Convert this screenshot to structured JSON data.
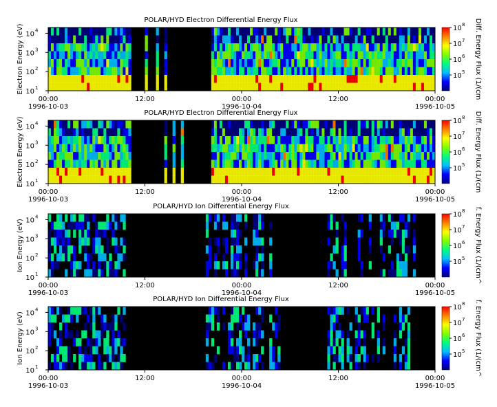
{
  "chart_data": [
    {
      "type": "heatmap",
      "title": "POLAR/HYD  Electron Differential Energy Flux",
      "ylabel": "Electron Energy (eV)",
      "colorbar_label": "Diff. Energy Flux (1/(cm",
      "colorbar_ticks": [
        "10",
        "10",
        "10",
        "10"
      ],
      "colorbar_exps": [
        "5",
        "6",
        "7",
        "8"
      ],
      "yticks": [
        "10",
        "10",
        "10",
        "10"
      ],
      "yexps": [
        "1",
        "2",
        "3",
        "4"
      ],
      "xticks": [
        "00:00",
        "12:00",
        "00:00",
        "12:00",
        "00:00"
      ],
      "xdates": [
        "1996-10-03",
        "",
        "1996-10-04",
        "",
        "1996-10-05"
      ],
      "ylim": [
        10,
        20000
      ],
      "yscale": "log",
      "xlim": [
        "1996-10-03 00:00",
        "1996-10-05 00:00"
      ],
      "zscale": "log",
      "zlim": [
        10000,
        100000000
      ],
      "ion": false
    },
    {
      "type": "heatmap",
      "title": "POLAR/HYD  Electron Differential Energy Flux",
      "ylabel": "Electron Energy (eV)",
      "colorbar_label": "Diff. Energy Flux (1/(cm",
      "colorbar_ticks": [
        "10",
        "10",
        "10",
        "10"
      ],
      "colorbar_exps": [
        "5",
        "6",
        "7",
        "8"
      ],
      "yticks": [
        "10",
        "10",
        "10",
        "10"
      ],
      "yexps": [
        "1",
        "2",
        "3",
        "4"
      ],
      "xticks": [
        "00:00",
        "12:00",
        "00:00",
        "12:00",
        "00:00"
      ],
      "xdates": [
        "1996-10-03",
        "",
        "1996-10-04",
        "",
        "1996-10-05"
      ],
      "ylim": [
        10,
        20000
      ],
      "yscale": "log",
      "xlim": [
        "1996-10-03 00:00",
        "1996-10-05 00:00"
      ],
      "zscale": "log",
      "zlim": [
        10000,
        100000000
      ],
      "ion": false
    },
    {
      "type": "heatmap",
      "title": "POLAR/HYD  Ion Differential Energy Flux",
      "ylabel": "Ion Energy (eV)",
      "colorbar_label": "f. Energy Flux (1/(cm^",
      "colorbar_ticks": [
        "10",
        "10",
        "10",
        "10"
      ],
      "colorbar_exps": [
        "5",
        "6",
        "7",
        "8"
      ],
      "yticks": [
        "10",
        "10",
        "10",
        "10"
      ],
      "yexps": [
        "1",
        "2",
        "3",
        "4"
      ],
      "xticks": [
        "00:00",
        "12:00",
        "00:00",
        "12:00",
        "00:00"
      ],
      "xdates": [
        "1996-10-03",
        "",
        "1996-10-04",
        "",
        "1996-10-05"
      ],
      "ylim": [
        10,
        20000
      ],
      "yscale": "log",
      "xlim": [
        "1996-10-03 00:00",
        "1996-10-05 00:00"
      ],
      "zscale": "log",
      "zlim": [
        10000,
        100000000
      ],
      "ion": true
    },
    {
      "type": "heatmap",
      "title": "POLAR/HYD  Ion Differential Energy Flux",
      "ylabel": "Ion Energy (eV)",
      "colorbar_label": "f. Energy Flux (1/(cm^",
      "colorbar_ticks": [
        "10",
        "10",
        "10",
        "10"
      ],
      "colorbar_exps": [
        "5",
        "6",
        "7",
        "8"
      ],
      "yticks": [
        "10",
        "10",
        "10",
        "10"
      ],
      "yexps": [
        "1",
        "2",
        "3",
        "4"
      ],
      "xticks": [
        "00:00",
        "12:00",
        "00:00",
        "12:00",
        "00:00"
      ],
      "xdates": [
        "1996-10-03",
        "",
        "1996-10-04",
        "",
        "1996-10-05"
      ],
      "ylim": [
        10,
        20000
      ],
      "yscale": "log",
      "xlim": [
        "1996-10-03 00:00",
        "1996-10-05 00:00"
      ],
      "zscale": "log",
      "zlim": [
        10000,
        100000000
      ],
      "ion": true
    }
  ],
  "colors": {
    "background": "#000000",
    "colormap": [
      "#00007f",
      "#0000ff",
      "#00bfff",
      "#00ff80",
      "#80ff00",
      "#ffff00",
      "#ff8000",
      "#ff0000"
    ]
  }
}
